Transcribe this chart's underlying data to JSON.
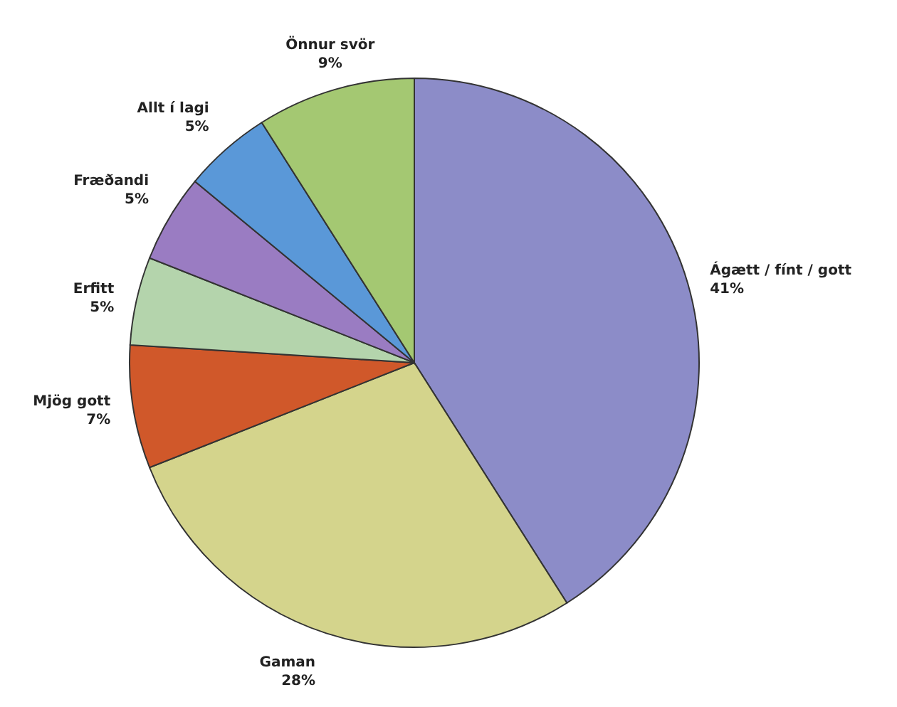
{
  "chart_data": {
    "type": "pie",
    "categories": [
      "Ágætt / fínt / gott",
      "Gaman",
      "Mjög gott",
      "Erfitt",
      "Fræðandi",
      "Allt í lagi",
      "Önnur svör"
    ],
    "values": [
      41,
      28,
      7,
      5,
      5,
      5,
      9
    ],
    "value_labels": [
      "41%",
      "28%",
      "7%",
      "5%",
      "5%",
      "5%",
      "9%"
    ],
    "colors": [
      "#8c8cc8",
      "#d4d48c",
      "#d0582a",
      "#b4d4ac",
      "#9a7cc2",
      "#5a98d8",
      "#a4c872"
    ]
  }
}
